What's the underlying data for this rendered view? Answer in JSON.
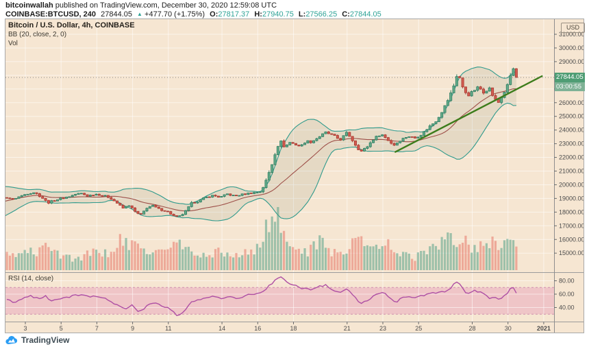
{
  "header": {
    "author": "bitcoinwallah",
    "published": " published on TradingView.com, December 30, 2020 12:59:08 UTC",
    "symbol_text": "COINBASE:BTCUSD, 240",
    "last_price": "27844.05",
    "direction_arrow": "▲",
    "change_text": "+477.70 (+1.75%)",
    "ohlc": [
      {
        "k": "O:",
        "v": "27817.37"
      },
      {
        "k": "H:",
        "v": "27940.75"
      },
      {
        "k": "L:",
        "v": "27566.25"
      },
      {
        "k": "C:",
        "v": "27844.05"
      }
    ]
  },
  "legend": {
    "title": "Bitcoin / U.S. Dollar, 4h, COINBASE",
    "bb": "BB (20, close, 2, 0)",
    "vol": "Vol",
    "rsi": "RSI (14, close)"
  },
  "price_scale": {
    "currency": "USD",
    "last_label": "27844.05",
    "countdown": "03:00:55"
  },
  "footer": {
    "brand": "TradingView"
  },
  "colors": {
    "chart_bg": "#f6e6d2",
    "grid": "rgba(255,255,255,0.55)",
    "candle_up": "#64aa89",
    "candle_up_border": "#2e7d62",
    "candle_down": "#d25b50",
    "candle_down_border": "#a83a31",
    "vol_up": "rgba(84,160,134,0.55)",
    "vol_down": "rgba(226,96,82,0.45)",
    "bb_line": "#2f9a8c",
    "bb_fill": "rgba(105,125,95,0.12)",
    "bb_basis": "#9d4f48",
    "trendline": "#3c7c1b",
    "rsi_line": "#ae4fa4",
    "rsi_band_fill": "rgba(226,132,175,0.33)",
    "rsi_band_border": "#cf8fae",
    "price_label_bg": "#4f9d74",
    "countdown_bg": "#7fb296",
    "accent_teal": "#2fa396"
  },
  "chart_data": {
    "type": "candlestick",
    "symbol": "COINBASE:BTCUSD",
    "interval": "4h",
    "overlays": [
      "BB (20, close, 2, 0)",
      "Vol"
    ],
    "lower_panel": "RSI (14, close)",
    "last_price": 27844.05,
    "price_ticks": [
      31000,
      30000,
      29000,
      28000,
      27000,
      26000,
      25000,
      24000,
      23000,
      22000,
      21000,
      20000,
      19000,
      18000,
      17000,
      16000,
      15000
    ],
    "rsi_ticks": [
      80,
      60,
      40
    ],
    "rsi_band": [
      30,
      70
    ],
    "time_ticks": [
      {
        "d": 3,
        "l": "3"
      },
      {
        "d": 5,
        "l": "5"
      },
      {
        "d": 7,
        "l": "7"
      },
      {
        "d": 9,
        "l": "9"
      },
      {
        "d": 11,
        "l": "11"
      },
      {
        "d": 14,
        "l": "14"
      },
      {
        "d": 16,
        "l": "16"
      },
      {
        "d": 18,
        "l": "18"
      },
      {
        "d": 21,
        "l": "21"
      },
      {
        "d": 23,
        "l": "23"
      },
      {
        "d": 25,
        "l": "25"
      },
      {
        "d": 28,
        "l": "28"
      },
      {
        "d": 30,
        "l": "30"
      },
      {
        "d": 32,
        "l": "2021",
        "b": true
      }
    ],
    "price_path": [
      [
        -1.7,
        17750
      ],
      [
        -1.2,
        18000
      ],
      [
        -0.7,
        18150
      ],
      [
        -0.2,
        18450
      ],
      [
        0.2,
        18900
      ],
      [
        0.6,
        19450
      ],
      [
        0.9,
        19750
      ],
      [
        1.2,
        19300
      ],
      [
        1.5,
        18850
      ],
      [
        1.9,
        19100
      ],
      [
        2.3,
        18950
      ],
      [
        2.7,
        19150
      ],
      [
        3.1,
        19350
      ],
      [
        3.5,
        19450
      ],
      [
        3.9,
        19100
      ],
      [
        4.25,
        18680
      ],
      [
        4.6,
        18850
      ],
      [
        5.0,
        19000
      ],
      [
        5.4,
        19120
      ],
      [
        5.8,
        19300
      ],
      [
        6.1,
        19380
      ],
      [
        6.5,
        19180
      ],
      [
        6.9,
        19330
      ],
      [
        7.3,
        19230
      ],
      [
        7.7,
        19080
      ],
      [
        8.1,
        18700
      ],
      [
        8.45,
        18280
      ],
      [
        8.8,
        18500
      ],
      [
        9.2,
        17950
      ],
      [
        9.45,
        17780
      ],
      [
        9.8,
        18320
      ],
      [
        10.1,
        18480
      ],
      [
        10.5,
        18200
      ],
      [
        10.9,
        18080
      ],
      [
        11.3,
        17720
      ],
      [
        11.55,
        17620
      ],
      [
        11.9,
        17950
      ],
      [
        12.3,
        18650
      ],
      [
        12.7,
        18820
      ],
      [
        13.1,
        19080
      ],
      [
        13.5,
        19220
      ],
      [
        13.9,
        19080
      ],
      [
        14.3,
        19320
      ],
      [
        14.7,
        19180
      ],
      [
        15.1,
        19280
      ],
      [
        15.5,
        19380
      ],
      [
        15.9,
        19440
      ],
      [
        16.2,
        19520
      ],
      [
        16.5,
        20400
      ],
      [
        16.8,
        21500
      ],
      [
        17.0,
        22400
      ],
      [
        17.25,
        23250
      ],
      [
        17.5,
        22750
      ],
      [
        17.8,
        23100
      ],
      [
        18.1,
        22950
      ],
      [
        18.4,
        22800
      ],
      [
        18.7,
        23200
      ],
      [
        19.0,
        23120
      ],
      [
        19.4,
        23480
      ],
      [
        19.8,
        23820
      ],
      [
        20.2,
        23620
      ],
      [
        20.6,
        23280
      ],
      [
        21.0,
        23820
      ],
      [
        21.35,
        23150
      ],
      [
        21.75,
        22400
      ],
      [
        22.1,
        22750
      ],
      [
        22.5,
        23380
      ],
      [
        22.9,
        23720
      ],
      [
        23.25,
        23320
      ],
      [
        23.6,
        22880
      ],
      [
        24.0,
        23280
      ],
      [
        24.4,
        23560
      ],
      [
        24.8,
        23420
      ],
      [
        25.2,
        23720
      ],
      [
        25.6,
        24250
      ],
      [
        26.0,
        24700
      ],
      [
        26.35,
        25450
      ],
      [
        26.7,
        26350
      ],
      [
        27.0,
        27350
      ],
      [
        27.2,
        28250
      ],
      [
        27.45,
        27150
      ],
      [
        27.75,
        26500
      ],
      [
        28.05,
        26850
      ],
      [
        28.35,
        27150
      ],
      [
        28.65,
        26750
      ],
      [
        28.95,
        27100
      ],
      [
        29.2,
        26350
      ],
      [
        29.45,
        25980
      ],
      [
        29.75,
        26650
      ],
      [
        30.0,
        27350
      ],
      [
        30.2,
        28300
      ],
      [
        30.35,
        28550
      ],
      [
        30.5,
        27850
      ]
    ],
    "volume_profile": [
      [
        -1.7,
        0.25
      ],
      [
        0,
        0.3
      ],
      [
        1,
        0.35
      ],
      [
        2,
        0.3
      ],
      [
        2.6,
        0.2
      ],
      [
        3.1,
        0.35
      ],
      [
        3.6,
        0.22
      ],
      [
        4.3,
        0.45
      ],
      [
        5,
        0.25
      ],
      [
        5.6,
        0.18
      ],
      [
        6.2,
        0.22
      ],
      [
        7,
        0.3
      ],
      [
        7.6,
        0.25
      ],
      [
        8.3,
        0.5
      ],
      [
        8.8,
        0.35
      ],
      [
        9.3,
        0.42
      ],
      [
        9.9,
        0.3
      ],
      [
        10.5,
        0.28
      ],
      [
        11,
        0.33
      ],
      [
        11.5,
        0.45
      ],
      [
        12.1,
        0.3
      ],
      [
        12.7,
        0.22
      ],
      [
        13.3,
        0.26
      ],
      [
        14,
        0.3
      ],
      [
        14.6,
        0.22
      ],
      [
        15.2,
        0.26
      ],
      [
        15.8,
        0.3
      ],
      [
        16.3,
        0.55
      ],
      [
        16.6,
        0.8
      ],
      [
        16.85,
        0.65
      ],
      [
        17.05,
        1.0
      ],
      [
        17.3,
        0.55
      ],
      [
        17.7,
        0.42
      ],
      [
        18.2,
        0.35
      ],
      [
        18.8,
        0.3
      ],
      [
        19.3,
        0.38
      ],
      [
        19.6,
        0.5
      ],
      [
        20.1,
        0.3
      ],
      [
        20.7,
        0.26
      ],
      [
        21.1,
        0.4
      ],
      [
        21.4,
        0.55
      ],
      [
        21.8,
        0.45
      ],
      [
        22.3,
        0.33
      ],
      [
        22.8,
        0.38
      ],
      [
        23.3,
        0.4
      ],
      [
        23.8,
        0.33
      ],
      [
        24.3,
        0.24
      ],
      [
        24.8,
        0.2
      ],
      [
        25.3,
        0.3
      ],
      [
        25.8,
        0.34
      ],
      [
        26.3,
        0.42
      ],
      [
        26.8,
        0.55
      ],
      [
        27.1,
        0.5
      ],
      [
        27.5,
        0.44
      ],
      [
        27.9,
        0.4
      ],
      [
        28.3,
        0.36
      ],
      [
        28.7,
        0.42
      ],
      [
        29.1,
        0.5
      ],
      [
        29.5,
        0.44
      ],
      [
        29.9,
        0.4
      ],
      [
        30.15,
        0.5
      ],
      [
        30.5,
        0.4
      ]
    ],
    "rsi_path": [
      [
        1.9,
        52
      ],
      [
        2.4,
        48
      ],
      [
        2.9,
        55
      ],
      [
        3.3,
        58
      ],
      [
        3.7,
        53
      ],
      [
        4.1,
        57
      ],
      [
        4.5,
        50
      ],
      [
        4.9,
        53
      ],
      [
        5.3,
        55
      ],
      [
        5.8,
        58
      ],
      [
        6.2,
        60
      ],
      [
        6.6,
        54
      ],
      [
        7.0,
        58
      ],
      [
        7.4,
        54
      ],
      [
        7.8,
        50
      ],
      [
        8.2,
        42
      ],
      [
        8.6,
        38
      ],
      [
        9.0,
        44
      ],
      [
        9.3,
        34
      ],
      [
        9.6,
        38
      ],
      [
        9.9,
        45
      ],
      [
        10.3,
        47
      ],
      [
        10.7,
        41
      ],
      [
        11.1,
        38
      ],
      [
        11.5,
        27
      ],
      [
        11.9,
        35
      ],
      [
        12.3,
        48
      ],
      [
        12.7,
        52
      ],
      [
        13.1,
        55
      ],
      [
        13.5,
        58
      ],
      [
        13.9,
        53
      ],
      [
        14.3,
        57
      ],
      [
        14.7,
        54
      ],
      [
        15.1,
        56
      ],
      [
        15.5,
        59
      ],
      [
        15.9,
        61
      ],
      [
        16.3,
        64
      ],
      [
        16.6,
        72
      ],
      [
        16.9,
        78
      ],
      [
        17.1,
        83
      ],
      [
        17.3,
        87
      ],
      [
        17.6,
        79
      ],
      [
        17.9,
        75
      ],
      [
        18.2,
        72
      ],
      [
        18.6,
        68
      ],
      [
        19.0,
        67
      ],
      [
        19.4,
        71
      ],
      [
        19.8,
        74
      ],
      [
        20.2,
        67
      ],
      [
        20.6,
        62
      ],
      [
        21.0,
        68
      ],
      [
        21.4,
        56
      ],
      [
        21.8,
        46
      ],
      [
        22.2,
        52
      ],
      [
        22.6,
        58
      ],
      [
        23.0,
        63
      ],
      [
        23.4,
        55
      ],
      [
        23.7,
        48
      ],
      [
        24.1,
        54
      ],
      [
        24.5,
        57
      ],
      [
        24.9,
        55
      ],
      [
        25.3,
        58
      ],
      [
        25.7,
        61
      ],
      [
        26.1,
        62
      ],
      [
        26.5,
        65
      ],
      [
        26.8,
        70
      ],
      [
        27.0,
        76
      ],
      [
        27.2,
        80
      ],
      [
        27.5,
        66
      ],
      [
        27.8,
        60
      ],
      [
        28.1,
        65
      ],
      [
        28.4,
        63
      ],
      [
        28.7,
        61
      ],
      [
        29.0,
        53
      ],
      [
        29.3,
        56
      ],
      [
        29.5,
        53
      ],
      [
        29.7,
        56
      ],
      [
        29.95,
        62
      ],
      [
        30.15,
        68
      ],
      [
        30.3,
        70
      ],
      [
        30.45,
        62
      ],
      [
        30.5,
        62
      ]
    ],
    "trendline": {
      "from": [
        23.7,
        22400
      ],
      "to": [
        31.9,
        27940
      ]
    }
  }
}
